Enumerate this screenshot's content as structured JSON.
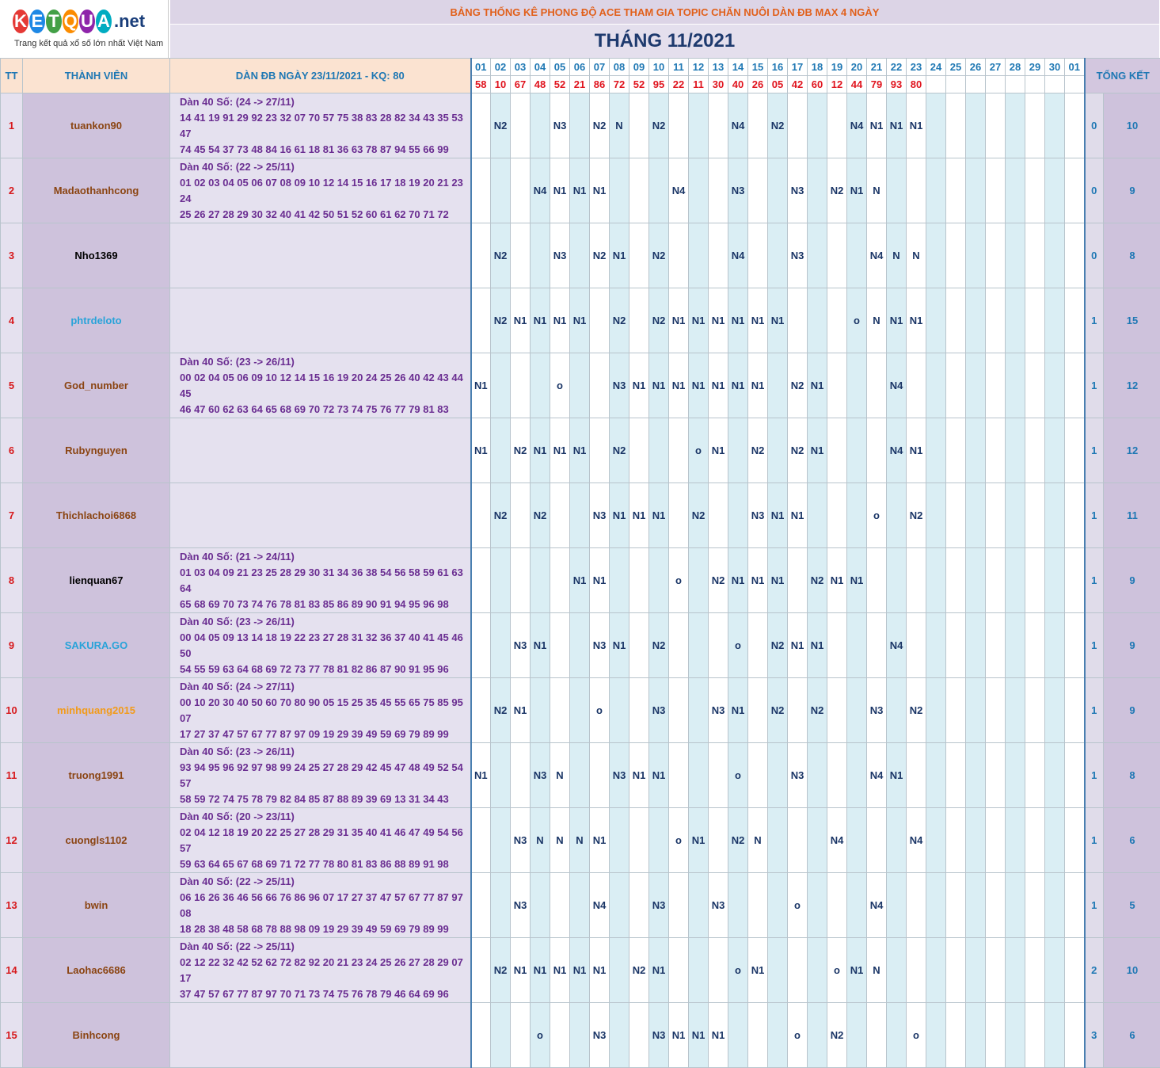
{
  "logo": {
    "letters": [
      {
        "ch": "K",
        "color": "#e53935"
      },
      {
        "ch": "E",
        "color": "#1e88e5"
      },
      {
        "ch": "T",
        "color": "#43a047"
      },
      {
        "ch": "Q",
        "color": "#fb8c00"
      },
      {
        "ch": "U",
        "color": "#8e24aa"
      },
      {
        "ch": "A",
        "color": "#00acc1"
      }
    ],
    "suffix": ".net",
    "tagline": "Trang kết quả xổ số lớn nhất Việt Nam"
  },
  "header": {
    "subtitle": "BẢNG THỐNG KÊ PHONG ĐỘ ACE THAM GIA TOPIC CHĂN NUÔI DÀN ĐB MAX 4 NGÀY",
    "title": "THÁNG 11/2021"
  },
  "columns": {
    "tt": "TT",
    "member": "THÀNH VIÊN",
    "dan": "DÀN ĐB NGÀY 23/11/2021 - KQ: 80",
    "summary": "TỔNG KẾT"
  },
  "days": [
    "01",
    "02",
    "03",
    "04",
    "05",
    "06",
    "07",
    "08",
    "09",
    "10",
    "11",
    "12",
    "13",
    "14",
    "15",
    "16",
    "17",
    "18",
    "19",
    "20",
    "21",
    "22",
    "23",
    "24",
    "25",
    "26",
    "27",
    "28",
    "29",
    "30",
    "01"
  ],
  "results": [
    "58",
    "10",
    "67",
    "48",
    "52",
    "21",
    "86",
    "72",
    "52",
    "95",
    "22",
    "11",
    "30",
    "40",
    "26",
    "05",
    "42",
    "60",
    "12",
    "44",
    "79",
    "93",
    "80",
    "",
    "",
    "",
    "",
    "",
    "",
    "",
    ""
  ],
  "rows": [
    {
      "tt": "1",
      "member": "tuankon90",
      "color": "#8b4513",
      "dan": [
        "Dàn 40 Số: (24 -> 27/11)",
        "14 41 19 91 29 92 23 32 07 70 57 75 38 83 28 82 34 43 35 53 47",
        "74 45 54 37 73 48 84 16 61 18 81 36 63 78 87 94 55 66 99"
      ],
      "cells": [
        "",
        "N2",
        "",
        "",
        "N3",
        "",
        "N2",
        "N",
        "",
        "N2",
        "",
        "",
        "",
        "N4",
        "",
        "N2",
        "",
        "",
        "",
        "N4",
        "N1",
        "N1",
        "N1",
        "",
        "",
        "",
        "",
        "",
        "",
        "",
        ""
      ],
      "s1": "0",
      "s2": "10"
    },
    {
      "tt": "2",
      "member": "Madaothanhcong",
      "color": "#8b4513",
      "dan": [
        "Dàn 40 Số: (22 -> 25/11)",
        "01 02 03 04 05 06 07 08 09 10 12 14 15 16 17 18 19 20 21 23 24",
        "25 26 27 28 29 30 32 40 41 42 50 51 52 60 61 62 70 71 72"
      ],
      "cells": [
        "",
        "",
        "",
        "N4",
        "N1",
        "N1",
        "N1",
        "",
        "",
        "",
        "N4",
        "",
        "",
        "N3",
        "",
        "",
        "N3",
        "",
        "N2",
        "N1",
        "N",
        "",
        "",
        "",
        "",
        "",
        "",
        "",
        "",
        "",
        ""
      ],
      "s1": "0",
      "s2": "9"
    },
    {
      "tt": "3",
      "member": "Nho1369",
      "color": "#000000",
      "dan": [],
      "cells": [
        "",
        "N2",
        "",
        "",
        "N3",
        "",
        "N2",
        "N1",
        "",
        "N2",
        "",
        "",
        "",
        "N4",
        "",
        "",
        "N3",
        "",
        "",
        "",
        "N4",
        "N",
        "N",
        "",
        "",
        "",
        "",
        "",
        "",
        "",
        ""
      ],
      "s1": "0",
      "s2": "8"
    },
    {
      "tt": "4",
      "member": "phtrdeloto",
      "color": "#29a3d9",
      "dan": [],
      "cells": [
        "",
        "N2",
        "N1",
        "N1",
        "N1",
        "N1",
        "",
        "N2",
        "",
        "N2",
        "N1",
        "N1",
        "N1",
        "N1",
        "N1",
        "N1",
        "",
        "",
        "",
        "o",
        "N",
        "N1",
        "N1",
        "",
        "",
        "",
        "",
        "",
        "",
        "",
        ""
      ],
      "s1": "1",
      "s2": "15"
    },
    {
      "tt": "5",
      "member": "God_number",
      "color": "#8b4513",
      "dan": [
        "Dàn 40 Số: (23 -> 26/11)",
        "00 02 04 05 06 09 10 12 14 15 16 19 20 24 25 26 40 42 43 44 45",
        "46 47 60 62 63 64 65 68 69 70 72 73 74 75 76 77 79 81 83"
      ],
      "cells": [
        "N1",
        "",
        "",
        "",
        "o",
        "",
        "",
        "N3",
        "N1",
        "N1",
        "N1",
        "N1",
        "N1",
        "N1",
        "N1",
        "",
        "N2",
        "N1",
        "",
        "",
        "",
        "N4",
        "",
        "",
        "",
        "",
        "",
        "",
        "",
        "",
        ""
      ],
      "s1": "1",
      "s2": "12"
    },
    {
      "tt": "6",
      "member": "Rubynguyen",
      "color": "#8b4513",
      "dan": [],
      "cells": [
        "N1",
        "",
        "N2",
        "N1",
        "N1",
        "N1",
        "",
        "N2",
        "",
        "",
        "",
        "o",
        "N1",
        "",
        "N2",
        "",
        "N2",
        "N1",
        "",
        "",
        "",
        "N4",
        "N1",
        "",
        "",
        "",
        "",
        "",
        "",
        "",
        ""
      ],
      "s1": "1",
      "s2": "12"
    },
    {
      "tt": "7",
      "member": "Thichlachoi6868",
      "color": "#8b4513",
      "dan": [],
      "cells": [
        "",
        "N2",
        "",
        "N2",
        "",
        "",
        "N3",
        "N1",
        "N1",
        "N1",
        "",
        "N2",
        "",
        "",
        "N3",
        "N1",
        "N1",
        "",
        "",
        "",
        "o",
        "",
        "N2",
        "",
        "",
        "",
        "",
        "",
        "",
        "",
        ""
      ],
      "s1": "1",
      "s2": "11"
    },
    {
      "tt": "8",
      "member": "lienquan67",
      "color": "#000000",
      "dan": [
        "Dàn 40 Số: (21 -> 24/11)",
        "01 03 04 09 21 23 25 28 29 30 31 34 36 38 54 56 58 59 61 63 64",
        "65 68 69 70 73 74 76 78 81 83 85 86 89 90 91 94 95 96 98"
      ],
      "cells": [
        "",
        "",
        "",
        "",
        "",
        "N1",
        "N1",
        "",
        "",
        "",
        "o",
        "",
        "N2",
        "N1",
        "N1",
        "N1",
        "",
        "N2",
        "N1",
        "N1",
        "",
        "",
        "",
        "",
        "",
        "",
        "",
        "",
        "",
        "",
        ""
      ],
      "s1": "1",
      "s2": "9"
    },
    {
      "tt": "9",
      "member": "SAKURA.GO",
      "color": "#29a3d9",
      "dan": [
        "Dàn 40 Số: (23 -> 26/11)",
        "00 04 05 09 13 14 18 19 22 23 27 28 31 32 36 37 40 41 45 46 50",
        "54 55 59 63 64 68 69 72 73 77 78 81 82 86 87 90 91 95 96"
      ],
      "cells": [
        "",
        "",
        "N3",
        "N1",
        "",
        "",
        "N3",
        "N1",
        "",
        "N2",
        "",
        "",
        "",
        "o",
        "",
        "N2",
        "N1",
        "N1",
        "",
        "",
        "",
        "N4",
        "",
        "",
        "",
        "",
        "",
        "",
        "",
        "",
        ""
      ],
      "s1": "1",
      "s2": "9"
    },
    {
      "tt": "10",
      "member": "minhquang2015",
      "color": "#f29b1a",
      "dan": [
        "Dàn 40 Số: (24 -> 27/11)",
        "00 10 20 30 40 50 60 70 80 90 05 15 25 35 45 55 65 75 85 95 07",
        "17 27 37 47 57 67 77 87 97 09 19 29 39 49 59 69 79 89 99"
      ],
      "cells": [
        "",
        "N2",
        "N1",
        "",
        "",
        "",
        "o",
        "",
        "",
        "N3",
        "",
        "",
        "N3",
        "N1",
        "",
        "N2",
        "",
        "N2",
        "",
        "",
        "N3",
        "",
        "N2",
        "",
        "",
        "",
        "",
        "",
        "",
        "",
        ""
      ],
      "s1": "1",
      "s2": "9"
    },
    {
      "tt": "11",
      "member": "truong1991",
      "color": "#8b4513",
      "dan": [
        "Dàn 40 Số: (23 -> 26/11)",
        "93 94 95 96 92 97 98 99 24 25 27 28 29 42 45 47 48 49 52 54 57",
        "58 59 72 74 75 78 79 82 84 85 87 88 89 39 69 13 31 34 43"
      ],
      "cells": [
        "N1",
        "",
        "",
        "N3",
        "N",
        "",
        "",
        "N3",
        "N1",
        "N1",
        "",
        "",
        "",
        "o",
        "",
        "",
        "N3",
        "",
        "",
        "",
        "N4",
        "N1",
        "",
        "",
        "",
        "",
        "",
        "",
        "",
        "",
        ""
      ],
      "s1": "1",
      "s2": "8"
    },
    {
      "tt": "12",
      "member": "cuongls1102",
      "color": "#8b4513",
      "dan": [
        "Dàn 40 Số: (20 -> 23/11)",
        "02 04 12 18 19 20 22 25 27 28 29 31 35 40 41 46 47 49 54 56 57",
        "59 63 64 65 67 68 69 71 72 77 78 80 81 83 86 88 89 91 98"
      ],
      "cells": [
        "",
        "",
        "N3",
        "N",
        "N",
        "N",
        "N1",
        "",
        "",
        "",
        "o",
        "N1",
        "",
        "N2",
        "N",
        "",
        "",
        "",
        "N4",
        "",
        "",
        "",
        "N4",
        "",
        "",
        "",
        "",
        "",
        "",
        "",
        ""
      ],
      "s1": "1",
      "s2": "6"
    },
    {
      "tt": "13",
      "member": "bwin",
      "color": "#8b4513",
      "dan": [
        "Dàn 40 Số: (22 -> 25/11)",
        "06 16 26 36 46 56 66 76 86 96 07 17 27 37 47 57 67 77 87 97 08",
        "18 28 38 48 58 68 78 88 98 09 19 29 39 49 59 69 79 89 99"
      ],
      "cells": [
        "",
        "",
        "N3",
        "",
        "",
        "",
        "N4",
        "",
        "",
        "N3",
        "",
        "",
        "N3",
        "",
        "",
        "",
        "o",
        "",
        "",
        "",
        "N4",
        "",
        "",
        "",
        "",
        "",
        "",
        "",
        "",
        "",
        ""
      ],
      "s1": "1",
      "s2": "5"
    },
    {
      "tt": "14",
      "member": "Laohac6686",
      "color": "#8b4513",
      "dan": [
        "Dàn 40 Số: (22 -> 25/11)",
        "02 12 22 32 42 52 62 72 82 92 20 21 23 24 25 26 27 28 29 07 17",
        "37 47 57 67 77 87 97 70 71 73 74 75 76 78 79 46 64 69 96"
      ],
      "cells": [
        "",
        "N2",
        "N1",
        "N1",
        "N1",
        "N1",
        "N1",
        "",
        "N2",
        "N1",
        "",
        "",
        "",
        "o",
        "N1",
        "",
        "",
        "",
        "o",
        "N1",
        "N",
        "",
        "",
        "",
        "",
        "",
        "",
        "",
        "",
        "",
        ""
      ],
      "s1": "2",
      "s2": "10"
    },
    {
      "tt": "15",
      "member": "Binhcong",
      "color": "#8b4513",
      "dan": [],
      "cells": [
        "",
        "",
        "",
        "o",
        "",
        "",
        "N3",
        "",
        "",
        "N3",
        "N1",
        "N1",
        "N1",
        "",
        "",
        "",
        "o",
        "",
        "N2",
        "",
        "",
        "",
        "o",
        "",
        "",
        "",
        "",
        "",
        "",
        "",
        ""
      ],
      "s1": "3",
      "s2": "6"
    }
  ]
}
